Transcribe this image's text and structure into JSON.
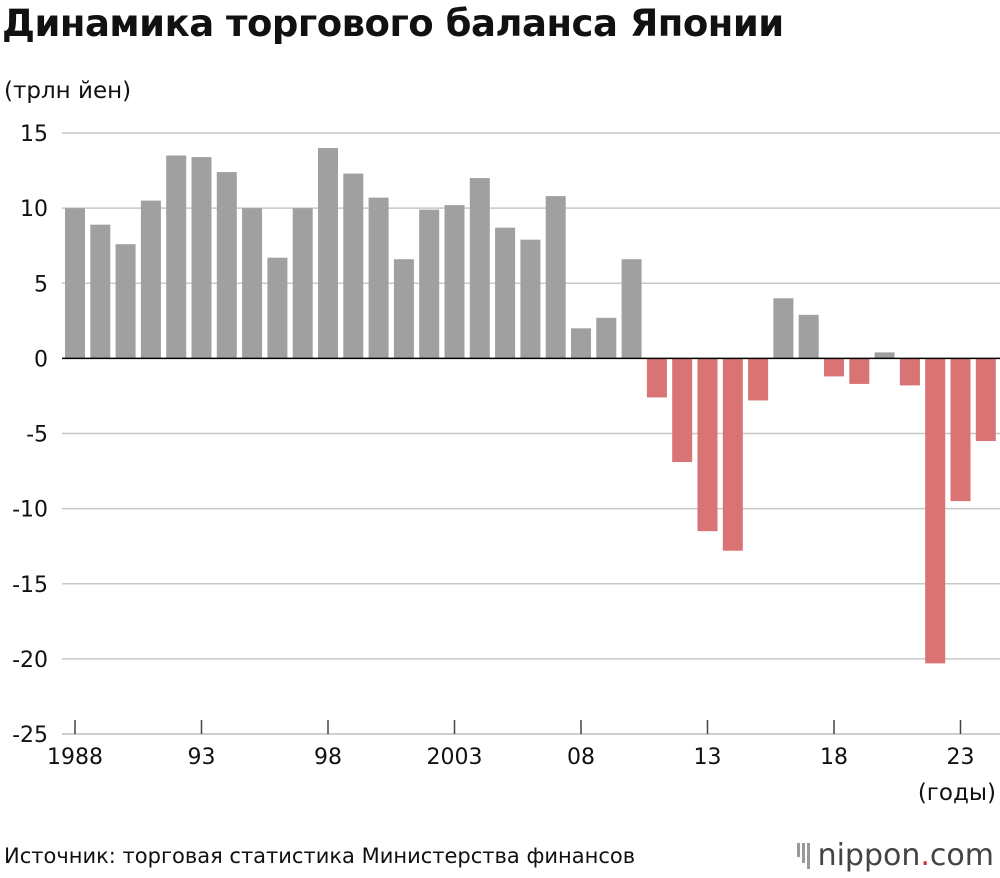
{
  "title": "Динамика торгового баланса Японии",
  "y_unit_label": "(трлн йен)",
  "x_unit_label": "(годы)",
  "source": "Источник: торговая статистика Министерства финансов",
  "logo": {
    "name": "nippon",
    "dot": ".",
    "suffix": "com"
  },
  "colors": {
    "positive": "#a0a0a0",
    "negative": "#d97374",
    "grid": "#c8c8c8",
    "zero": "#000000"
  },
  "chart_data": {
    "type": "bar",
    "title": "Динамика торгового баланса Японии",
    "ylabel": "(трлн йен)",
    "xlabel": "(годы)",
    "ylim": [
      -25,
      15
    ],
    "yticks": [
      15,
      10,
      5,
      0,
      -5,
      -10,
      -15,
      -20,
      -25
    ],
    "xtick_labels": [
      {
        "year": 1988,
        "label": "1988"
      },
      {
        "year": 1993,
        "label": "93"
      },
      {
        "year": 1998,
        "label": "98"
      },
      {
        "year": 2003,
        "label": "2003"
      },
      {
        "year": 2008,
        "label": "08"
      },
      {
        "year": 2013,
        "label": "13"
      },
      {
        "year": 2018,
        "label": "18"
      },
      {
        "year": 2023,
        "label": "23"
      }
    ],
    "grid": true,
    "categories": [
      1988,
      1989,
      1990,
      1991,
      1992,
      1993,
      1994,
      1995,
      1996,
      1997,
      1998,
      1999,
      2000,
      2001,
      2002,
      2003,
      2004,
      2005,
      2006,
      2007,
      2008,
      2009,
      2010,
      2011,
      2012,
      2013,
      2014,
      2015,
      2016,
      2017,
      2018,
      2019,
      2020,
      2021,
      2022,
      2023,
      2024
    ],
    "values": [
      10.0,
      8.9,
      7.6,
      10.5,
      13.5,
      13.4,
      12.4,
      10.0,
      6.7,
      10.0,
      14.0,
      12.3,
      10.7,
      6.6,
      9.9,
      10.2,
      12.0,
      8.7,
      7.9,
      10.8,
      2.0,
      2.7,
      6.6,
      -2.6,
      -6.9,
      -11.5,
      -12.8,
      -2.8,
      4.0,
      2.9,
      -1.2,
      -1.7,
      0.4,
      -1.8,
      -20.3,
      -9.5,
      -5.5
    ]
  }
}
